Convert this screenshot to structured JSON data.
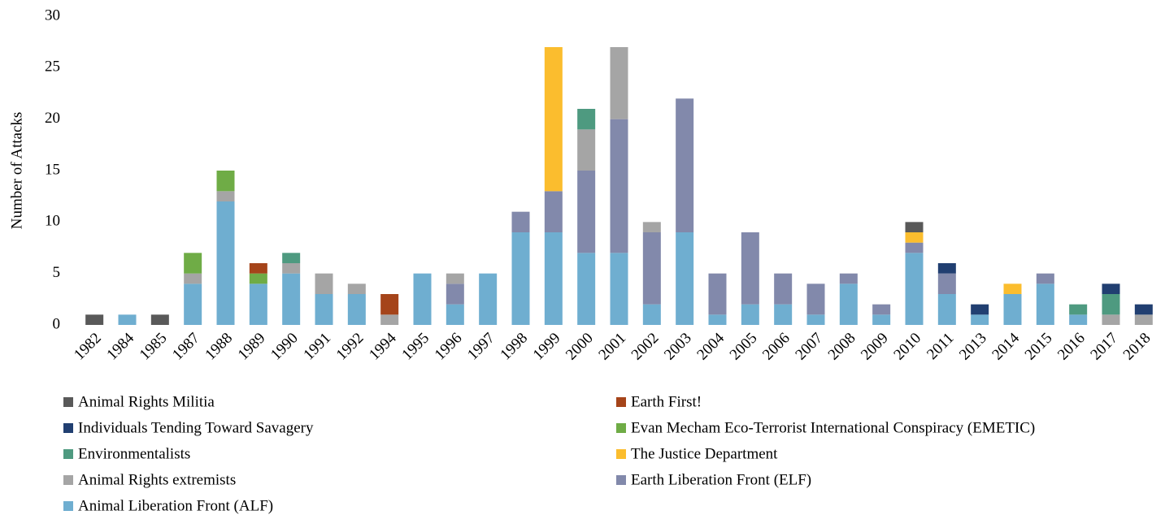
{
  "chart_data": {
    "type": "stacked_bar",
    "y_label": "Number of Attacks",
    "categories": [
      "1982",
      "1984",
      "1985",
      "1987",
      "1988",
      "1989",
      "1990",
      "1991",
      "1992",
      "1994",
      "1995",
      "1996",
      "1997",
      "1998",
      "1999",
      "2000",
      "2001",
      "2002",
      "2003",
      "2004",
      "2005",
      "2006",
      "2007",
      "2008",
      "2009",
      "2010",
      "2011",
      "2013",
      "2014",
      "2015",
      "2016",
      "2017",
      "2018"
    ],
    "ylim": [
      0,
      30
    ],
    "yticks": [
      0,
      5,
      10,
      15,
      20,
      25,
      30
    ],
    "grid": false,
    "series": [
      {
        "name": "Animal Rights Militia",
        "color": "#595959",
        "values": [
          1,
          0,
          1,
          0,
          0,
          0,
          0,
          0,
          0,
          0,
          0,
          0,
          0,
          0,
          0,
          0,
          0,
          0,
          0,
          0,
          0,
          0,
          0,
          0,
          0,
          1,
          0,
          0,
          0,
          0,
          0,
          0,
          0
        ]
      },
      {
        "name": "Earth First!",
        "color": "#a5441a",
        "values": [
          0,
          0,
          0,
          0,
          0,
          1,
          0,
          0,
          0,
          2,
          0,
          0,
          0,
          0,
          0,
          0,
          0,
          0,
          0,
          0,
          0,
          0,
          0,
          0,
          0,
          0,
          0,
          0,
          0,
          0,
          0,
          0,
          0
        ]
      },
      {
        "name": "Individuals Tending Toward Savagery",
        "color": "#213f71",
        "values": [
          0,
          0,
          0,
          0,
          0,
          0,
          0,
          0,
          0,
          0,
          0,
          0,
          0,
          0,
          0,
          0,
          0,
          0,
          0,
          0,
          0,
          0,
          0,
          0,
          0,
          0,
          1,
          1,
          0,
          0,
          0,
          1,
          1
        ]
      },
      {
        "name": "Evan Mecham  Eco-Terrorist International Conspiracy (EMETIC)",
        "color": "#6fac46",
        "values": [
          0,
          0,
          0,
          2,
          2,
          1,
          0,
          0,
          0,
          0,
          0,
          0,
          0,
          0,
          0,
          0,
          0,
          0,
          0,
          0,
          0,
          0,
          0,
          0,
          0,
          0,
          0,
          0,
          0,
          0,
          0,
          0,
          0
        ]
      },
      {
        "name": "Environmentalists",
        "color": "#4e9a80",
        "values": [
          0,
          0,
          0,
          0,
          0,
          0,
          1,
          0,
          0,
          0,
          0,
          0,
          0,
          0,
          0,
          2,
          0,
          0,
          0,
          0,
          0,
          0,
          0,
          0,
          0,
          0,
          0,
          0,
          0,
          0,
          1,
          2,
          0
        ]
      },
      {
        "name": "The Justice Department",
        "color": "#fbbd2e",
        "values": [
          0,
          0,
          0,
          0,
          0,
          0,
          0,
          0,
          0,
          0,
          0,
          0,
          0,
          0,
          14,
          0,
          0,
          0,
          0,
          0,
          0,
          0,
          0,
          0,
          0,
          1,
          0,
          0,
          1,
          0,
          0,
          0,
          0
        ]
      },
      {
        "name": "Animal Rights  extremists",
        "color": "#a5a5a5",
        "values": [
          0,
          0,
          0,
          1,
          1,
          0,
          1,
          2,
          1,
          1,
          0,
          1,
          0,
          0,
          0,
          4,
          7,
          1,
          0,
          0,
          0,
          0,
          0,
          0,
          0,
          0,
          0,
          0,
          0,
          0,
          0,
          1,
          1
        ]
      },
      {
        "name": "Earth Liberation Front (ELF)",
        "color": "#8289ab",
        "values": [
          0,
          0,
          0,
          0,
          0,
          0,
          0,
          0,
          0,
          0,
          0,
          2,
          0,
          2,
          4,
          8,
          13,
          7,
          13,
          4,
          7,
          3,
          3,
          1,
          1,
          1,
          2,
          0,
          0,
          1,
          0,
          0,
          0
        ]
      },
      {
        "name": "Animal Liberation Front (ALF)",
        "color": "#6faed0",
        "values": [
          0,
          1,
          0,
          4,
          12,
          4,
          5,
          3,
          3,
          0,
          5,
          2,
          5,
          9,
          9,
          7,
          7,
          2,
          9,
          1,
          2,
          2,
          1,
          4,
          1,
          7,
          3,
          1,
          3,
          4,
          1,
          0,
          0
        ]
      }
    ]
  }
}
